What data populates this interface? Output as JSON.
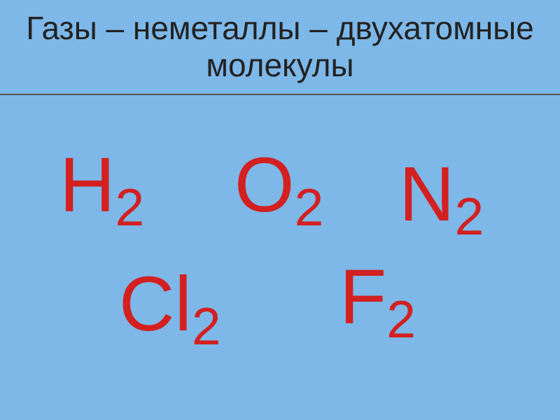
{
  "title": {
    "text": "Газы – неметаллы – двухатомные молекулы",
    "fontsize": 46,
    "color": "#222222"
  },
  "background_color": "#7db8e8",
  "divider_color": "#555555",
  "formulas": {
    "type": "infographic",
    "color": "#d32020",
    "fontsize": 110,
    "subscript_fontsize": 75,
    "items": [
      {
        "id": "h2",
        "element": "H",
        "subscript": "2",
        "row": 1
      },
      {
        "id": "o2",
        "element": "O",
        "subscript": "2",
        "row": 1
      },
      {
        "id": "n2",
        "element": "N",
        "subscript": "2",
        "row": 1
      },
      {
        "id": "cl2",
        "element": "Cl",
        "subscript": "2",
        "row": 2
      },
      {
        "id": "f2",
        "element": "F",
        "subscript": "2",
        "row": 2
      }
    ]
  }
}
